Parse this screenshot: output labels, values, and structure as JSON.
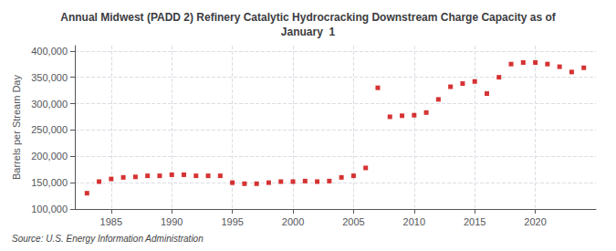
{
  "chart_data": {
    "type": "scatter",
    "title": "Annual Midwest (PADD 2) Refinery Catalytic Hydrocracking Downstream Charge Capacity as of\nJanuary  1",
    "ylabel": "Barrels per Stream Day",
    "annotations": [
      "Source: U.S. Energy Information Administration"
    ],
    "x": [
      1983,
      1984,
      1985,
      1986,
      1987,
      1988,
      1989,
      1990,
      1991,
      1992,
      1993,
      1994,
      1995,
      1996,
      1997,
      1998,
      1999,
      2000,
      2001,
      2002,
      2003,
      2004,
      2005,
      2006,
      2007,
      2008,
      2009,
      2010,
      2011,
      2012,
      2013,
      2014,
      2015,
      2016,
      2017,
      2018,
      2019,
      2020,
      2021,
      2022,
      2023,
      2024
    ],
    "values": [
      130000,
      152000,
      157000,
      160000,
      161000,
      163000,
      163000,
      165000,
      165000,
      163000,
      163000,
      163000,
      150000,
      148000,
      148000,
      150000,
      152000,
      152000,
      153000,
      152000,
      153000,
      160000,
      163000,
      178000,
      330000,
      275000,
      277000,
      278000,
      283000,
      308000,
      332000,
      338000,
      342000,
      319000,
      350000,
      375000,
      378000,
      378000,
      375000,
      370000,
      360000,
      368000
    ],
    "color": "#cc0000",
    "marker": "square",
    "xlim": [
      1982,
      2025
    ],
    "xticks": [
      1985,
      1990,
      1995,
      2000,
      2005,
      2010,
      2015,
      2020
    ],
    "ylim": [
      100000,
      410000
    ],
    "yticks": [
      {
        "value": 100000,
        "label": "100,000"
      },
      {
        "value": 150000,
        "label": "150,000"
      },
      {
        "value": 200000,
        "label": "200,000"
      },
      {
        "value": 250000,
        "label": "250,000"
      },
      {
        "value": 300000,
        "label": "300,000"
      },
      {
        "value": 350000,
        "label": "350,000"
      },
      {
        "value": 400000,
        "label": "400,000"
      }
    ],
    "grid": true
  }
}
